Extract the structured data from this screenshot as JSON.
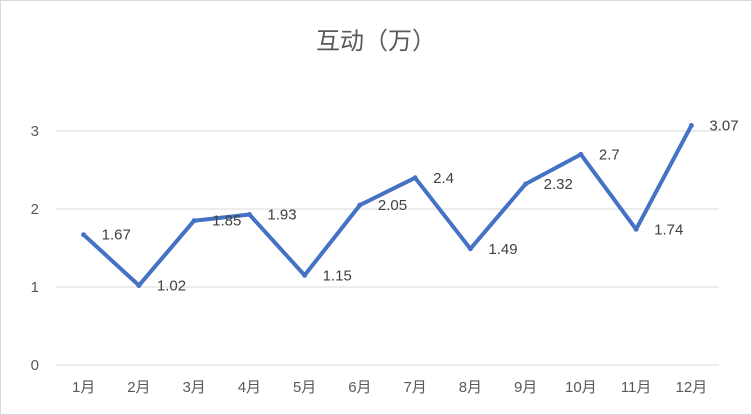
{
  "chart_data": {
    "type": "line",
    "title": "互动（万）",
    "categories": [
      "1月",
      "2月",
      "3月",
      "4月",
      "5月",
      "6月",
      "7月",
      "8月",
      "9月",
      "10月",
      "11月",
      "12月"
    ],
    "series": [
      {
        "values": [
          1.67,
          1.02,
          1.85,
          1.93,
          1.15,
          2.05,
          2.4,
          1.49,
          2.32,
          2.7,
          1.74,
          3.07
        ]
      }
    ],
    "data_labels": [
      "1.67",
      "1.02",
      "1.85",
      "1.93",
      "1.15",
      "2.05",
      "2.4",
      "1.49",
      "2.32",
      "2.7",
      "1.74",
      "3.07"
    ],
    "yticks": [
      "0",
      "1",
      "2",
      "3"
    ],
    "ylim": [
      0,
      3
    ],
    "grid": true,
    "legend": "none",
    "color": "#4472c4"
  }
}
